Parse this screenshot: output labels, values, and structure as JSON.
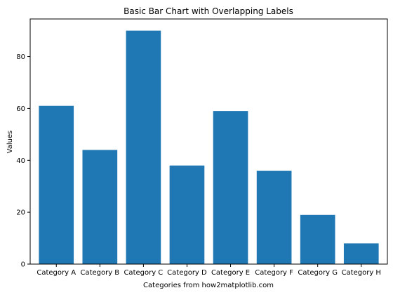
{
  "chart_data": {
    "type": "bar",
    "title": "Basic Bar Chart with Overlapping Labels",
    "xlabel": "Categories from how2matplotlib.com",
    "ylabel": "Values",
    "categories": [
      "Category A",
      "Category B",
      "Category C",
      "Category D",
      "Category E",
      "Category F",
      "Category G",
      "Category H"
    ],
    "values": [
      61,
      44,
      90,
      38,
      59,
      36,
      19,
      8
    ],
    "ylim": [
      0,
      94.5
    ],
    "yticks": [
      0,
      20,
      40,
      60,
      80
    ],
    "bar_color": "#1f77b4",
    "grid": false
  }
}
